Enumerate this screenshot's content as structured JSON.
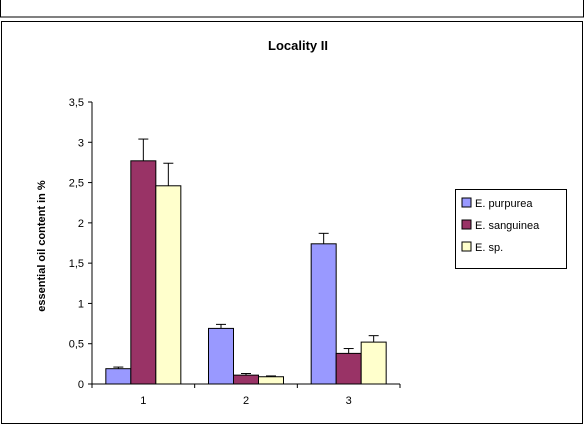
{
  "chart_data": {
    "type": "bar",
    "title": "Locality II",
    "xlabel": "",
    "ylabel": "essential oil content in %",
    "categories": [
      "1",
      "2",
      "3"
    ],
    "y_ticks": [
      "0",
      "0,5",
      "1",
      "1,5",
      "2",
      "2,5",
      "3",
      "3,5"
    ],
    "ylim": [
      0,
      3.5
    ],
    "grid": false,
    "legend_position": "right",
    "error_bars": true,
    "series": [
      {
        "name": "E. purpurea",
        "color": "#9999ff",
        "values": [
          0.19,
          0.69,
          1.74
        ],
        "errors": [
          0.02,
          0.05,
          0.13
        ]
      },
      {
        "name": "E. sanguinea",
        "color": "#993366",
        "values": [
          2.77,
          0.11,
          0.38
        ],
        "errors": [
          0.27,
          0.02,
          0.06
        ]
      },
      {
        "name": "E. sp.",
        "color": "#ffffcc",
        "values": [
          2.46,
          0.09,
          0.52
        ],
        "errors": [
          0.28,
          0.01,
          0.08
        ]
      }
    ]
  }
}
